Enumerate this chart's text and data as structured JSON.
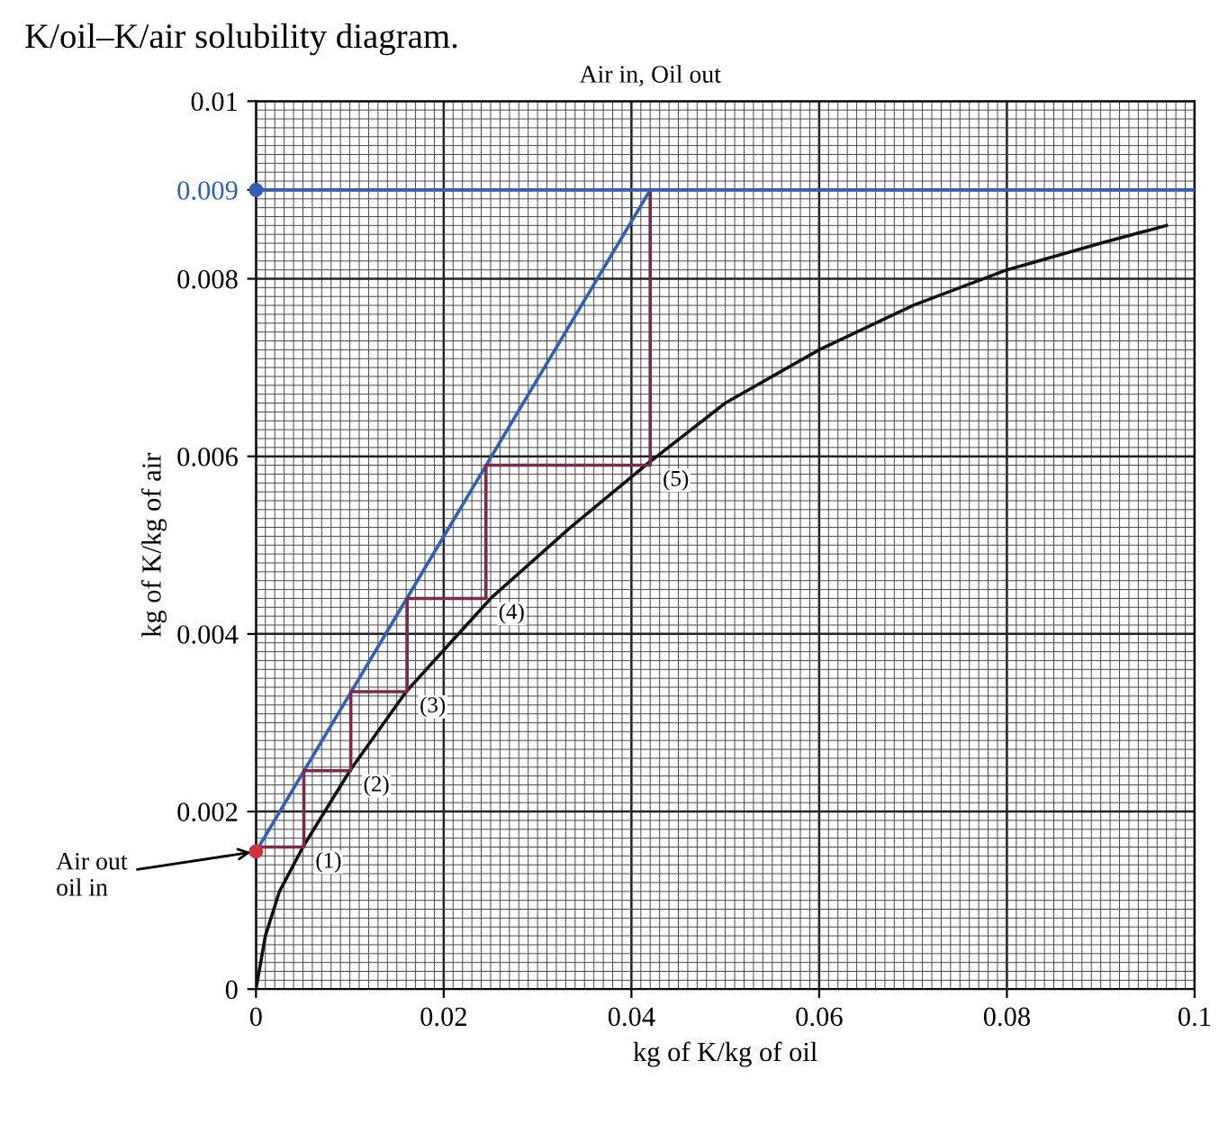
{
  "chart_data": {
    "type": "line",
    "title": "K/oil–K/air solubility diagram.",
    "xlabel": "kg of K/kg of oil",
    "ylabel": "kg of K/kg of air",
    "xlim": [
      0,
      0.1
    ],
    "ylim": [
      0,
      0.01
    ],
    "xticks": [
      0,
      0.02,
      0.04,
      0.06,
      0.08,
      0.1
    ],
    "yticks": [
      0,
      0.002,
      0.004,
      0.006,
      0.008,
      0.009,
      0.01
    ],
    "grid": true,
    "series": [
      {
        "color": "#111111",
        "x": [
          0,
          0.001,
          0.0025,
          0.005,
          0.01,
          0.016,
          0.025,
          0.0335,
          0.0415,
          0.05,
          0.06,
          0.07,
          0.08,
          0.09,
          0.097
        ],
        "values": [
          0,
          0.0006,
          0.0011,
          0.0016,
          0.00246,
          0.00335,
          0.0044,
          0.0052,
          0.0059,
          0.0066,
          0.0072,
          0.0077,
          0.0081,
          0.0084,
          0.0086
        ]
      },
      {
        "color": "#2f5fb8",
        "x": [
          0,
          0.042
        ],
        "values": [
          0.00155,
          0.009
        ]
      },
      {
        "color": "#7a2a4a",
        "x": [
          0.042,
          0.042,
          0.0245,
          0.0245,
          0.0161,
          0.0161,
          0.0101,
          0.0101,
          0.0051,
          0.0051,
          0.0003
        ],
        "values": [
          0.009,
          0.0059,
          0.0059,
          0.0044,
          0.0044,
          0.00335,
          0.00335,
          0.00246,
          0.00246,
          0.0016,
          0.0016
        ]
      },
      {
        "type": "scatter",
        "colors": [
          "#d03040",
          "#2f5fb8"
        ],
        "x": [
          0,
          0
        ],
        "values": [
          0.00155,
          0.009
        ]
      }
    ],
    "ref_lines": [
      {
        "axis": "y",
        "value": 0.009,
        "color": "#2f5fb8"
      }
    ],
    "annotations": [
      "Air in, Oil out",
      {
        "text": "Air out\noil in",
        "x": 0,
        "y": 0.00155
      },
      {
        "text": "(1)",
        "x": 0.005,
        "y": 0.0016
      },
      {
        "text": "(2)",
        "x": 0.0101,
        "y": 0.00246
      },
      {
        "text": "(3)",
        "x": 0.0161,
        "y": 0.00335
      },
      {
        "text": "(4)",
        "x": 0.0245,
        "y": 0.0044
      },
      {
        "text": "(5)",
        "x": 0.042,
        "y": 0.0059
      }
    ]
  }
}
